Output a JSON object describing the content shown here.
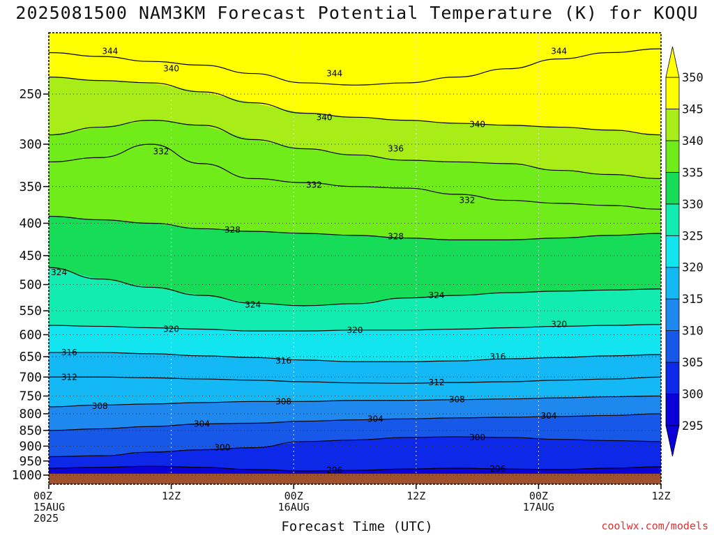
{
  "title": "2025081500 NAM3KM Forecast Potential Temperature (K) for KOQU",
  "credit": "coolwx.com/models",
  "colors": {
    "ground": "#a0522d",
    "contour": "#000000",
    "gridline": "#888888",
    "bands": [
      "#0a00d8",
      "#0d28e8",
      "#1758e8",
      "#1e88ee",
      "#14b8f4",
      "#12e4f0",
      "#12ecb0",
      "#16dc58",
      "#70ec1a",
      "#a8ec18",
      "#ffff00"
    ]
  },
  "chart_data": {
    "type": "heatmap",
    "title": "2025081500 NAM3KM Forecast Potential Temperature (K) for KOQU",
    "xlabel": "Forecast Time (UTC)",
    "ylabel": "",
    "y_scale": "log-pressure",
    "y_range_hpa": [
      1000,
      200
    ],
    "y_ticks": [
      250,
      300,
      350,
      400,
      450,
      500,
      550,
      600,
      650,
      700,
      750,
      800,
      850,
      900,
      950,
      1000
    ],
    "x_range_hours": [
      0,
      60
    ],
    "x_ticks": [
      {
        "hour": 0,
        "lines": [
          "00Z",
          "15AUG",
          "2025"
        ]
      },
      {
        "hour": 12,
        "lines": [
          "12Z"
        ]
      },
      {
        "hour": 24,
        "lines": [
          "00Z",
          "16AUG"
        ]
      },
      {
        "hour": 36,
        "lines": [
          "12Z"
        ]
      },
      {
        "hour": 48,
        "lines": [
          "00Z",
          "17AUG"
        ]
      },
      {
        "hour": 60,
        "lines": [
          "12Z"
        ]
      }
    ],
    "grid": true,
    "colorbar": {
      "placement": "right",
      "levels": [
        295,
        300,
        305,
        310,
        315,
        320,
        325,
        330,
        335,
        340,
        345,
        350
      ],
      "labels": [
        "350",
        "345",
        "340",
        "335",
        "330",
        "325",
        "320",
        "315",
        "310",
        "305",
        "300",
        "295"
      ],
      "extend": "both"
    },
    "contour_interval_k": 4,
    "contours": [
      {
        "level": 296,
        "hpa": [
          975,
          972,
          968,
          972,
          980,
          985,
          983,
          978,
          975,
          978,
          980,
          975,
          970
        ]
      },
      {
        "level": 300,
        "hpa": [
          935,
          932,
          920,
          912,
          905,
          885,
          880,
          872,
          870,
          872,
          878,
          882,
          885
        ]
      },
      {
        "level": 304,
        "hpa": [
          850,
          845,
          838,
          830,
          828,
          822,
          818,
          815,
          812,
          810,
          808,
          805,
          800
        ]
      },
      {
        "level": 308,
        "hpa": [
          780,
          775,
          772,
          768,
          765,
          765,
          762,
          762,
          760,
          758,
          755,
          752,
          750
        ]
      },
      {
        "level": 312,
        "hpa": [
          700,
          700,
          702,
          705,
          708,
          712,
          715,
          716,
          714,
          712,
          708,
          705,
          700
        ]
      },
      {
        "level": 316,
        "hpa": [
          640,
          640,
          643,
          648,
          652,
          658,
          662,
          662,
          660,
          655,
          652,
          648,
          645
        ]
      },
      {
        "level": 320,
        "hpa": [
          580,
          582,
          585,
          588,
          592,
          592,
          590,
          590,
          588,
          585,
          582,
          580,
          578
        ]
      },
      {
        "level": 324,
        "hpa": [
          470,
          490,
          505,
          520,
          535,
          540,
          536,
          525,
          520,
          515,
          512,
          510,
          508
        ]
      },
      {
        "level": 328,
        "hpa": [
          390,
          395,
          400,
          408,
          412,
          415,
          418,
          422,
          425,
          425,
          422,
          418,
          415
        ]
      },
      {
        "level": 332,
        "hpa": [
          320,
          315,
          300,
          322,
          340,
          345,
          350,
          352,
          360,
          368,
          372,
          375,
          380
        ]
      },
      {
        "level": 336,
        "hpa": [
          290,
          282,
          275,
          280,
          295,
          305,
          312,
          318,
          320,
          322,
          330,
          335,
          340
        ]
      },
      {
        "level": 340,
        "hpa": [
          235,
          238,
          240,
          248,
          258,
          268,
          272,
          275,
          278,
          280,
          282,
          285,
          290
        ]
      },
      {
        "level": 344,
        "hpa": [
          215,
          218,
          222,
          225,
          232,
          240,
          242,
          240,
          235,
          228,
          220,
          215,
          212
        ]
      }
    ],
    "contour_hours": [
      0,
      5,
      10,
      15,
      20,
      25,
      30,
      35,
      40,
      45,
      50,
      55,
      60
    ],
    "contour_labels": [
      {
        "text": "344",
        "hour": 6,
        "hpa": 214
      },
      {
        "text": "340",
        "hour": 12,
        "hpa": 228
      },
      {
        "text": "344",
        "hour": 28,
        "hpa": 232
      },
      {
        "text": "344",
        "hour": 50,
        "hpa": 214
      },
      {
        "text": "340",
        "hour": 27,
        "hpa": 272
      },
      {
        "text": "340",
        "hour": 42,
        "hpa": 279
      },
      {
        "text": "336",
        "hour": 34,
        "hpa": 305
      },
      {
        "text": "332",
        "hour": 11,
        "hpa": 308
      },
      {
        "text": "332",
        "hour": 26,
        "hpa": 348
      },
      {
        "text": "332",
        "hour": 41,
        "hpa": 368
      },
      {
        "text": "328",
        "hour": 18,
        "hpa": 410
      },
      {
        "text": "328",
        "hour": 34,
        "hpa": 420
      },
      {
        "text": "324",
        "hour": 1,
        "hpa": 478
      },
      {
        "text": "324",
        "hour": 20,
        "hpa": 538
      },
      {
        "text": "324",
        "hour": 38,
        "hpa": 520
      },
      {
        "text": "320",
        "hour": 12,
        "hpa": 588
      },
      {
        "text": "320",
        "hour": 30,
        "hpa": 590
      },
      {
        "text": "320",
        "hour": 50,
        "hpa": 578
      },
      {
        "text": "316",
        "hour": 2,
        "hpa": 640
      },
      {
        "text": "316",
        "hour": 23,
        "hpa": 660
      },
      {
        "text": "316",
        "hour": 44,
        "hpa": 650
      },
      {
        "text": "312",
        "hour": 2,
        "hpa": 700
      },
      {
        "text": "312",
        "hour": 38,
        "hpa": 714
      },
      {
        "text": "308",
        "hour": 5,
        "hpa": 778
      },
      {
        "text": "308",
        "hour": 23,
        "hpa": 765
      },
      {
        "text": "308",
        "hour": 40,
        "hpa": 760
      },
      {
        "text": "304",
        "hour": 15,
        "hpa": 830
      },
      {
        "text": "304",
        "hour": 32,
        "hpa": 815
      },
      {
        "text": "304",
        "hour": 49,
        "hpa": 806
      },
      {
        "text": "300",
        "hour": 17,
        "hpa": 905
      },
      {
        "text": "300",
        "hour": 42,
        "hpa": 872
      },
      {
        "text": "296",
        "hour": 28,
        "hpa": 982
      },
      {
        "text": "296",
        "hour": 44,
        "hpa": 978
      }
    ]
  }
}
